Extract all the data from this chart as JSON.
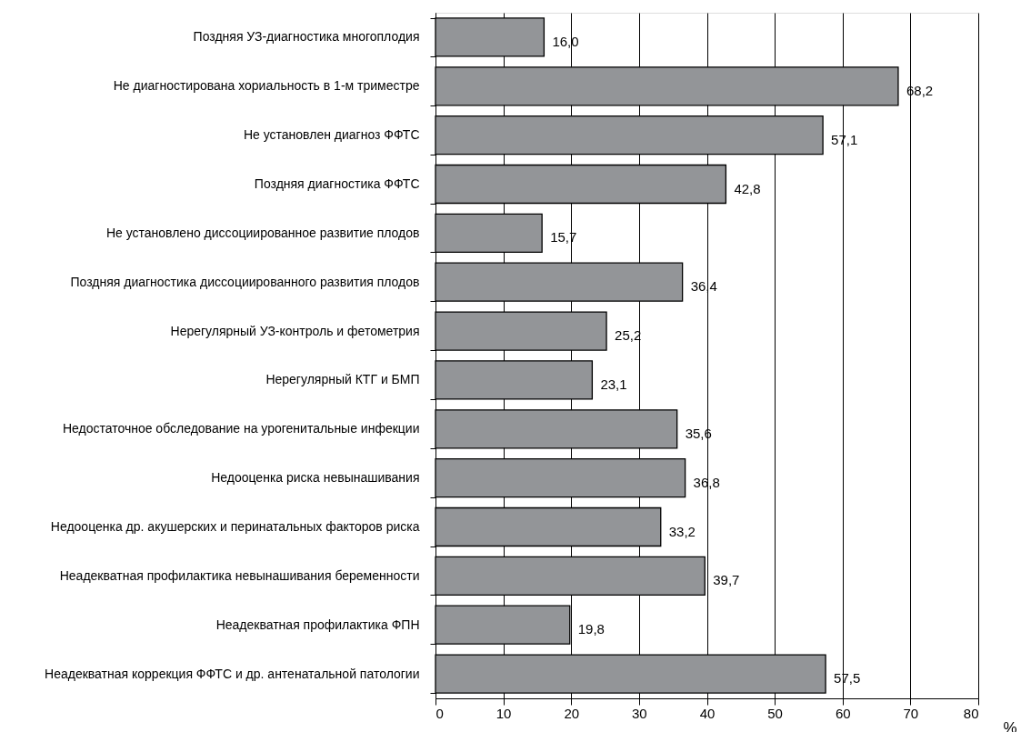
{
  "chart_data": {
    "type": "bar",
    "orientation": "horizontal",
    "xlabel": "%",
    "categories": [
      "Поздняя УЗ-диагностика многоплодия",
      "Не  диагностирована хориальность в 1-м триместре",
      "Не  установлен диагноз ФФТС",
      "Поздняя диагностика ФФТС",
      "Не  установлено диссоциированное развитие плодов",
      "Поздняя диагностика диссоциированного развития плодов",
      "Нерегулярный УЗ-контроль и фетометрия",
      "Нерегулярный КТГ и БМП",
      "Недостаточное обследование на урогенитальные инфекции",
      "Недооценка риска невынашивания",
      "Недооценка др. акушерских и перинатальных факторов риска",
      "Неадекватная профилактика невынашивания беременности",
      "Неадекватная профилактика ФПН",
      "Неадекватная коррекция ФФТС и др. антенатальной патологии"
    ],
    "values": [
      16.0,
      68.2,
      57.1,
      42.8,
      15.7,
      36.4,
      25.2,
      23.1,
      35.6,
      36.8,
      33.2,
      39.7,
      19.8,
      57.5
    ],
    "value_labels": [
      "16,0",
      "68,2",
      "57,1",
      "42,8",
      "15,7",
      "36,4",
      "25,2",
      "23,1",
      "35,6",
      "36,8",
      "33,2",
      "39,7",
      "19,8",
      "57,5"
    ],
    "color": "#939598",
    "xlim": [
      0,
      80
    ],
    "xticks": [
      0,
      10,
      20,
      30,
      40,
      50,
      60,
      70,
      80
    ],
    "grid": "x"
  }
}
